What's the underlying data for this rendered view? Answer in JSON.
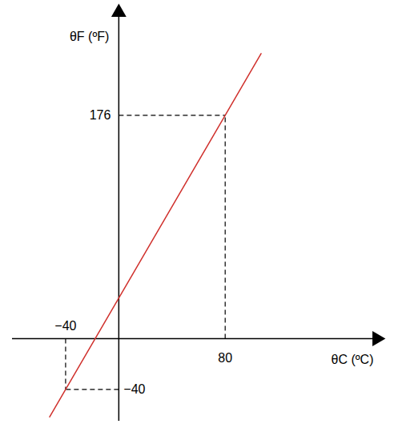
{
  "chart_data": {
    "type": "line",
    "x_label": "θC (ºC)",
    "y_label": "θF (ºF)",
    "x": [
      -52,
      -40,
      80,
      107
    ],
    "values": [
      -61.6,
      -40,
      176,
      224.6
    ],
    "color": "#d0312d",
    "xlim": [
      -80,
      194
    ],
    "ylim": [
      -65,
      257
    ],
    "xticks": [
      {
        "value": -40,
        "label": "−40"
      },
      80
    ],
    "yticks": [
      {
        "value": -40,
        "label": "−40"
      },
      176
    ]
  }
}
